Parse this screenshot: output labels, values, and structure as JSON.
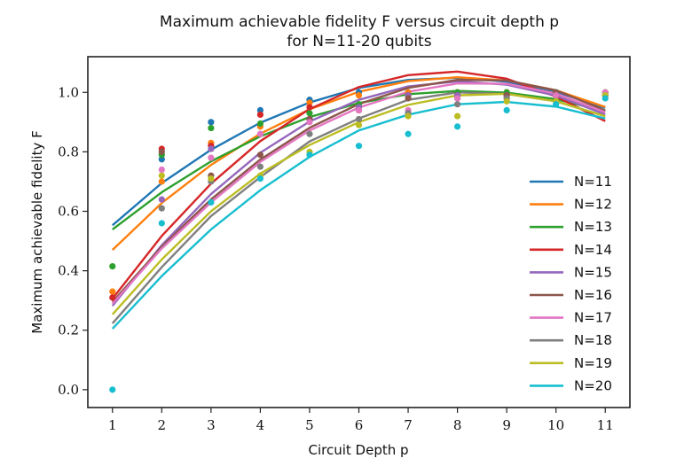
{
  "chart_data": {
    "type": "line",
    "title_line1": "Maximum achievable fidelity F versus circuit depth p",
    "title_line2": "for N=11-20 qubits",
    "xlabel": "Circuit Depth p",
    "ylabel": "Maximum achievable fidelity F",
    "x": [
      1,
      2,
      3,
      4,
      5,
      6,
      7,
      8,
      9,
      10,
      11
    ],
    "xlim": [
      0.5,
      11.5
    ],
    "ylim": [
      -0.06,
      1.12
    ],
    "xticks": [
      1,
      2,
      3,
      4,
      5,
      6,
      7,
      8,
      9,
      10,
      11
    ],
    "xtick_labels": [
      "1",
      "2",
      "3",
      "4",
      "5",
      "6",
      "7",
      "8",
      "9",
      "10",
      "11"
    ],
    "yticks": [
      0.0,
      0.2,
      0.4,
      0.6,
      0.8,
      1.0
    ],
    "ytick_labels": [
      "0.0",
      "0.2",
      "0.4",
      "0.6",
      "0.8",
      "1.0"
    ],
    "legend_position": "center-right",
    "series": [
      {
        "name": "N=11",
        "color": "#1f77b4",
        "fit": [
          0.553,
          0.695,
          0.807,
          0.898,
          0.966,
          1.015,
          1.042,
          1.049,
          1.036,
          1.002,
          0.948
        ],
        "points": [
          null,
          0.775,
          0.9,
          0.94,
          0.975,
          1.0,
          1.0,
          1.0,
          1.0,
          0.99,
          0.99
        ]
      },
      {
        "name": "N=12",
        "color": "#ff7f0e",
        "fit": [
          0.47,
          0.628,
          0.756,
          0.861,
          0.943,
          1.002,
          1.038,
          1.051,
          1.04,
          1.007,
          0.951
        ],
        "points": [
          0.33,
          0.7,
          0.83,
          0.885,
          0.965,
          0.99,
          1.0,
          1.0,
          1.0,
          0.99,
          1.0
        ]
      },
      {
        "name": "N=13",
        "color": "#2ca02c",
        "fit": [
          0.539,
          0.664,
          0.768,
          0.852,
          0.917,
          0.964,
          0.994,
          1.005,
          0.999,
          0.977,
          0.937
        ],
        "points": [
          0.415,
          0.79,
          0.88,
          0.895,
          0.93,
          0.96,
          0.99,
          1.0,
          1.0,
          1.0,
          1.0
        ]
      },
      {
        "name": "N=14",
        "color": "#d62728",
        "fit": [
          0.306,
          0.517,
          0.693,
          0.836,
          0.944,
          1.018,
          1.058,
          1.07,
          1.046,
          0.986,
          0.903
        ],
        "points": [
          0.31,
          0.81,
          0.82,
          0.925,
          0.95,
          0.94,
          0.99,
          0.99,
          0.99,
          0.99,
          0.99
        ]
      },
      {
        "name": "N=15",
        "color": "#9467bd",
        "fit": [
          0.282,
          0.486,
          0.658,
          0.797,
          0.902,
          0.975,
          1.02,
          1.037,
          1.026,
          0.989,
          0.926
        ],
        "points": [
          null,
          0.64,
          0.81,
          0.86,
          0.91,
          0.95,
          0.99,
          0.99,
          0.99,
          0.99,
          0.99
        ]
      },
      {
        "name": "N=16",
        "color": "#8c564b",
        "fit": [
          0.295,
          0.481,
          0.64,
          0.774,
          0.881,
          0.961,
          1.015,
          1.042,
          1.04,
          1.007,
          0.939
        ],
        "points": [
          null,
          0.8,
          0.72,
          0.79,
          0.91,
          0.94,
          0.98,
          0.98,
          0.99,
          1.0,
          0.99
        ]
      },
      {
        "name": "N=17",
        "color": "#e377c2",
        "fit": [
          0.289,
          0.475,
          0.63,
          0.766,
          0.872,
          0.949,
          1.002,
          1.03,
          1.029,
          0.996,
          0.933
        ],
        "points": [
          null,
          0.74,
          0.78,
          0.86,
          0.9,
          0.94,
          0.94,
          0.98,
          0.98,
          0.99,
          1.0
        ]
      },
      {
        "name": "N=18",
        "color": "#7f7f7f",
        "fit": [
          0.223,
          0.412,
          0.584,
          0.715,
          0.835,
          0.912,
          0.975,
          1.0,
          0.995,
          0.97,
          0.92
        ],
        "points": [
          null,
          0.61,
          0.7,
          0.75,
          0.86,
          0.91,
          0.93,
          0.96,
          0.98,
          0.97,
          0.99
        ]
      },
      {
        "name": "N=19",
        "color": "#bcbd22",
        "fit": [
          0.253,
          0.438,
          0.6,
          0.727,
          0.823,
          0.9,
          0.958,
          0.99,
          0.995,
          0.97,
          0.92
        ],
        "points": [
          null,
          0.72,
          0.71,
          0.72,
          0.8,
          0.89,
          0.92,
          0.92,
          0.97,
          0.97,
          0.99
        ]
      },
      {
        "name": "N=20",
        "color": "#17becf",
        "fit": [
          0.205,
          0.382,
          0.539,
          0.671,
          0.783,
          0.872,
          0.925,
          0.96,
          0.968,
          0.952,
          0.912
        ],
        "points": [
          0.0,
          0.56,
          0.63,
          0.71,
          0.79,
          0.82,
          0.86,
          0.885,
          0.94,
          0.96,
          0.98
        ]
      }
    ]
  }
}
